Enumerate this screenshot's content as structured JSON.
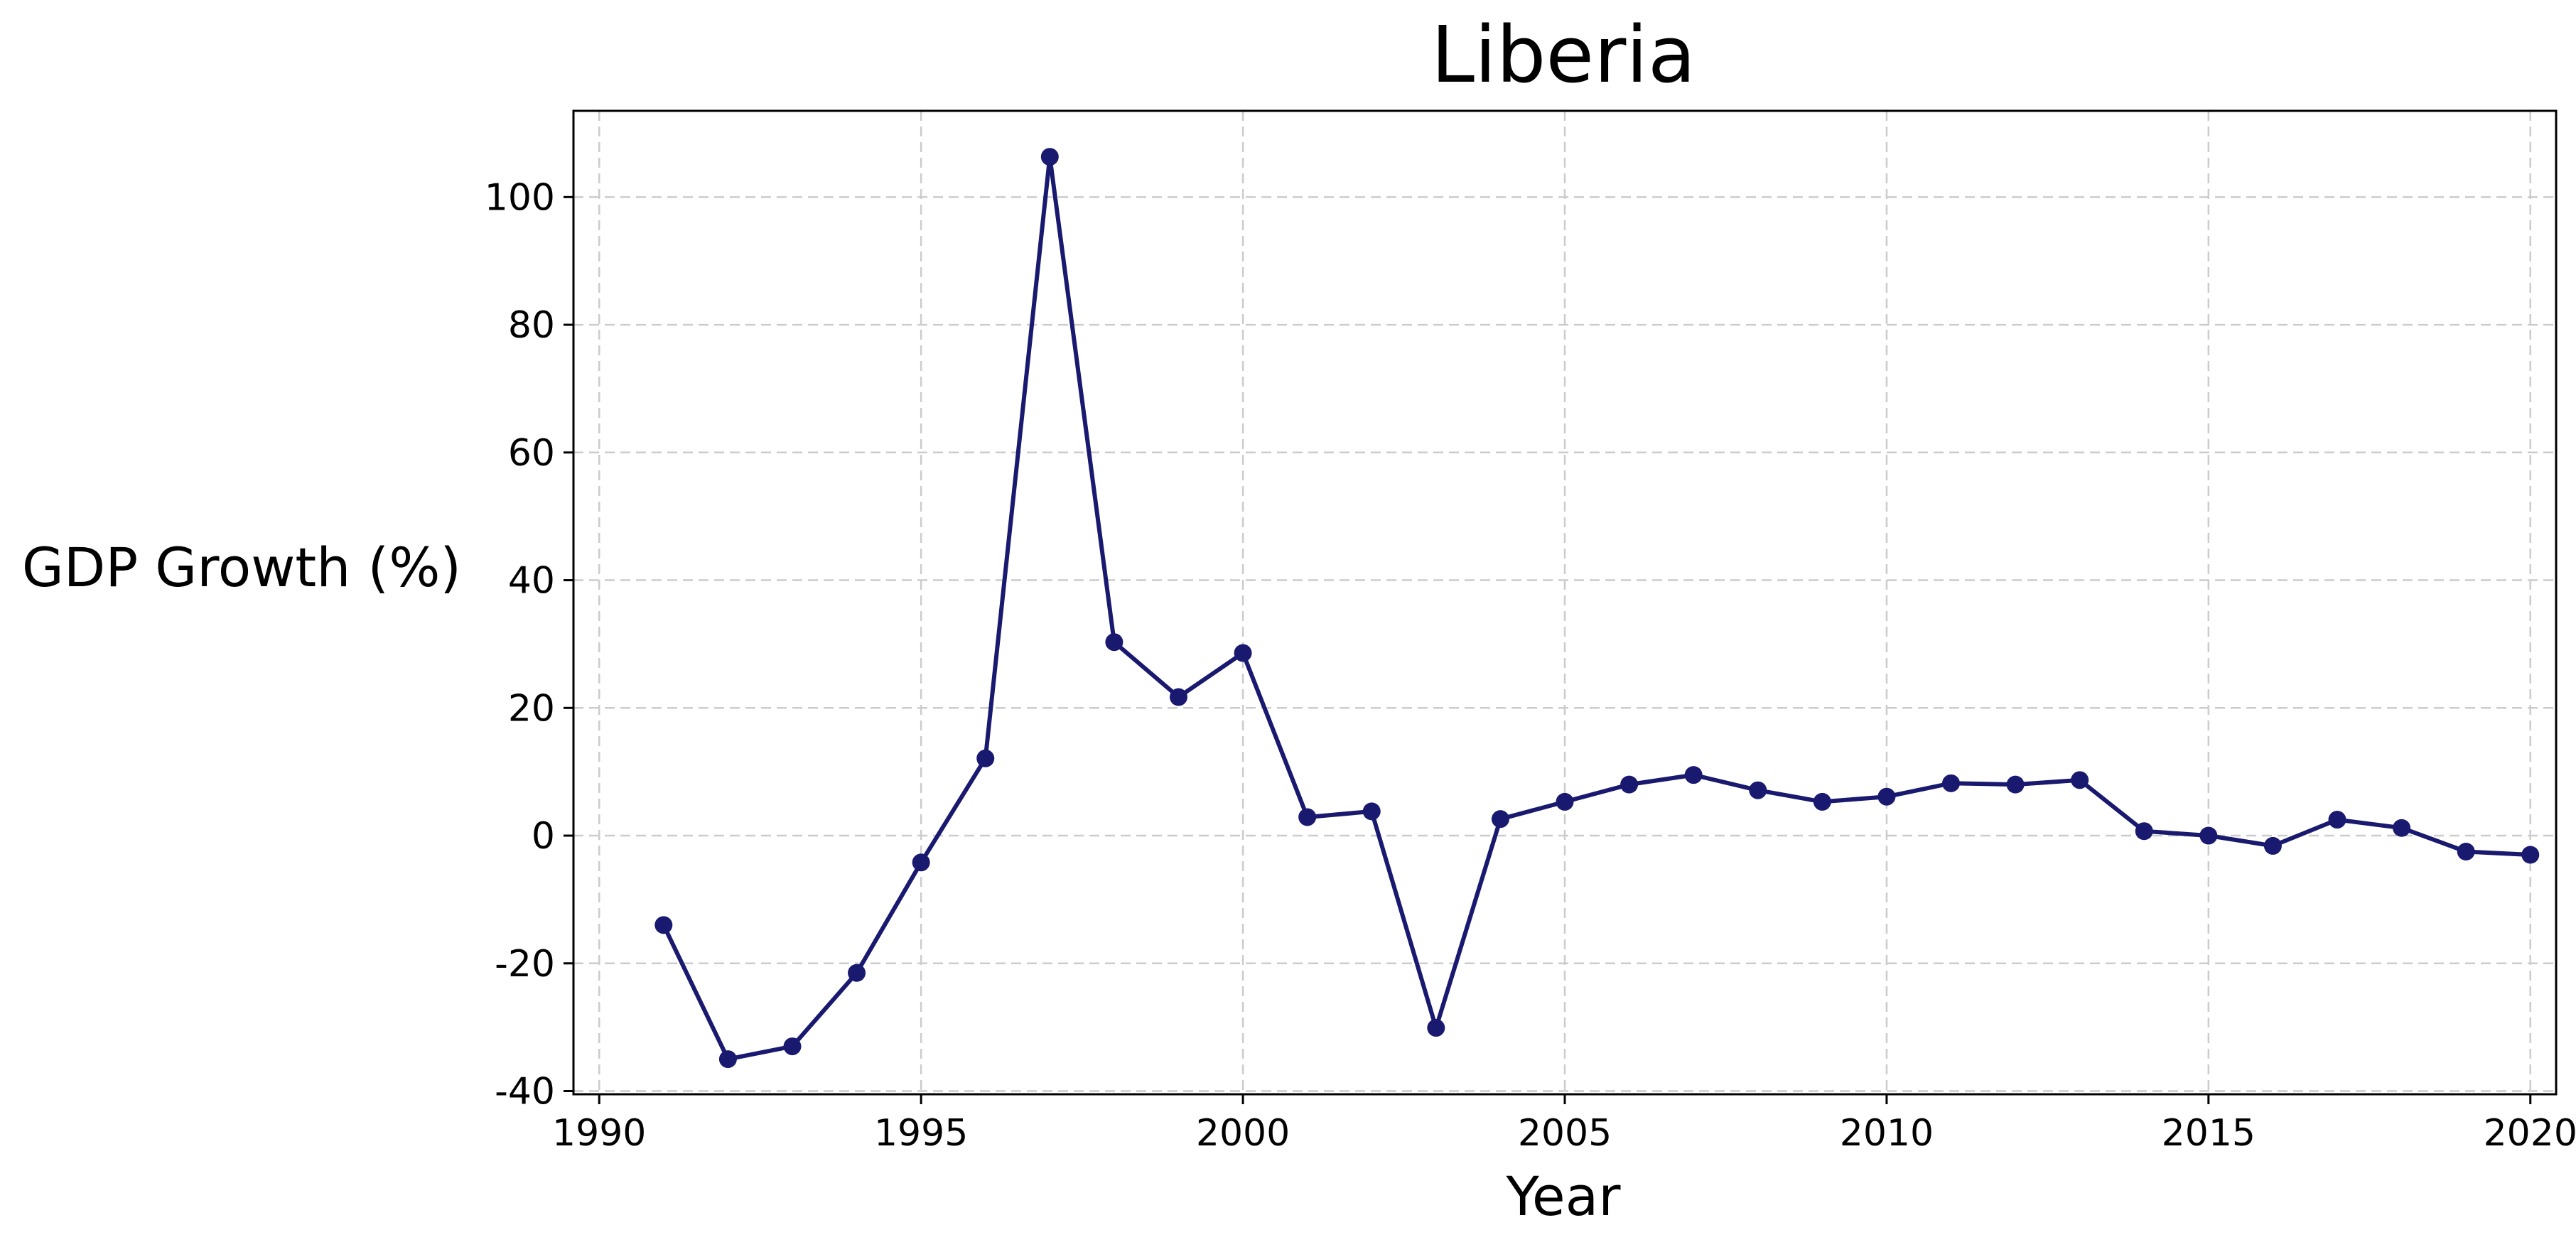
{
  "chart_data": {
    "type": "line",
    "title": "Liberia",
    "xlabel": "Year",
    "ylabel": "GDP Growth (%)",
    "xlim": [
      1989.6,
      2020.4
    ],
    "ylim": [
      -40.5,
      113.5
    ],
    "xticks": [
      1990,
      1995,
      2000,
      2005,
      2010,
      2015,
      2020
    ],
    "yticks": [
      -40,
      -20,
      0,
      20,
      40,
      60,
      80,
      100
    ],
    "grid": true,
    "line_color": "#191970",
    "series": [
      {
        "x": [
          1991,
          1992,
          1993,
          1994,
          1995,
          1996,
          1997,
          1998,
          1999,
          2000,
          2001,
          2002,
          2003,
          2004,
          2005,
          2006,
          2007,
          2008,
          2009,
          2010,
          2011,
          2012,
          2013,
          2014,
          2015,
          2016,
          2017,
          2018,
          2019,
          2020
        ],
        "values": [
          -14.0,
          -35.0,
          -33.0,
          -21.5,
          -4.2,
          12.1,
          106.3,
          30.3,
          21.7,
          28.6,
          2.9,
          3.8,
          -30.1,
          2.6,
          5.3,
          8.0,
          9.5,
          7.1,
          5.3,
          6.1,
          8.2,
          8.0,
          8.7,
          0.7,
          0.0,
          -1.6,
          2.5,
          1.2,
          -2.5,
          -3.0
        ]
      }
    ]
  }
}
